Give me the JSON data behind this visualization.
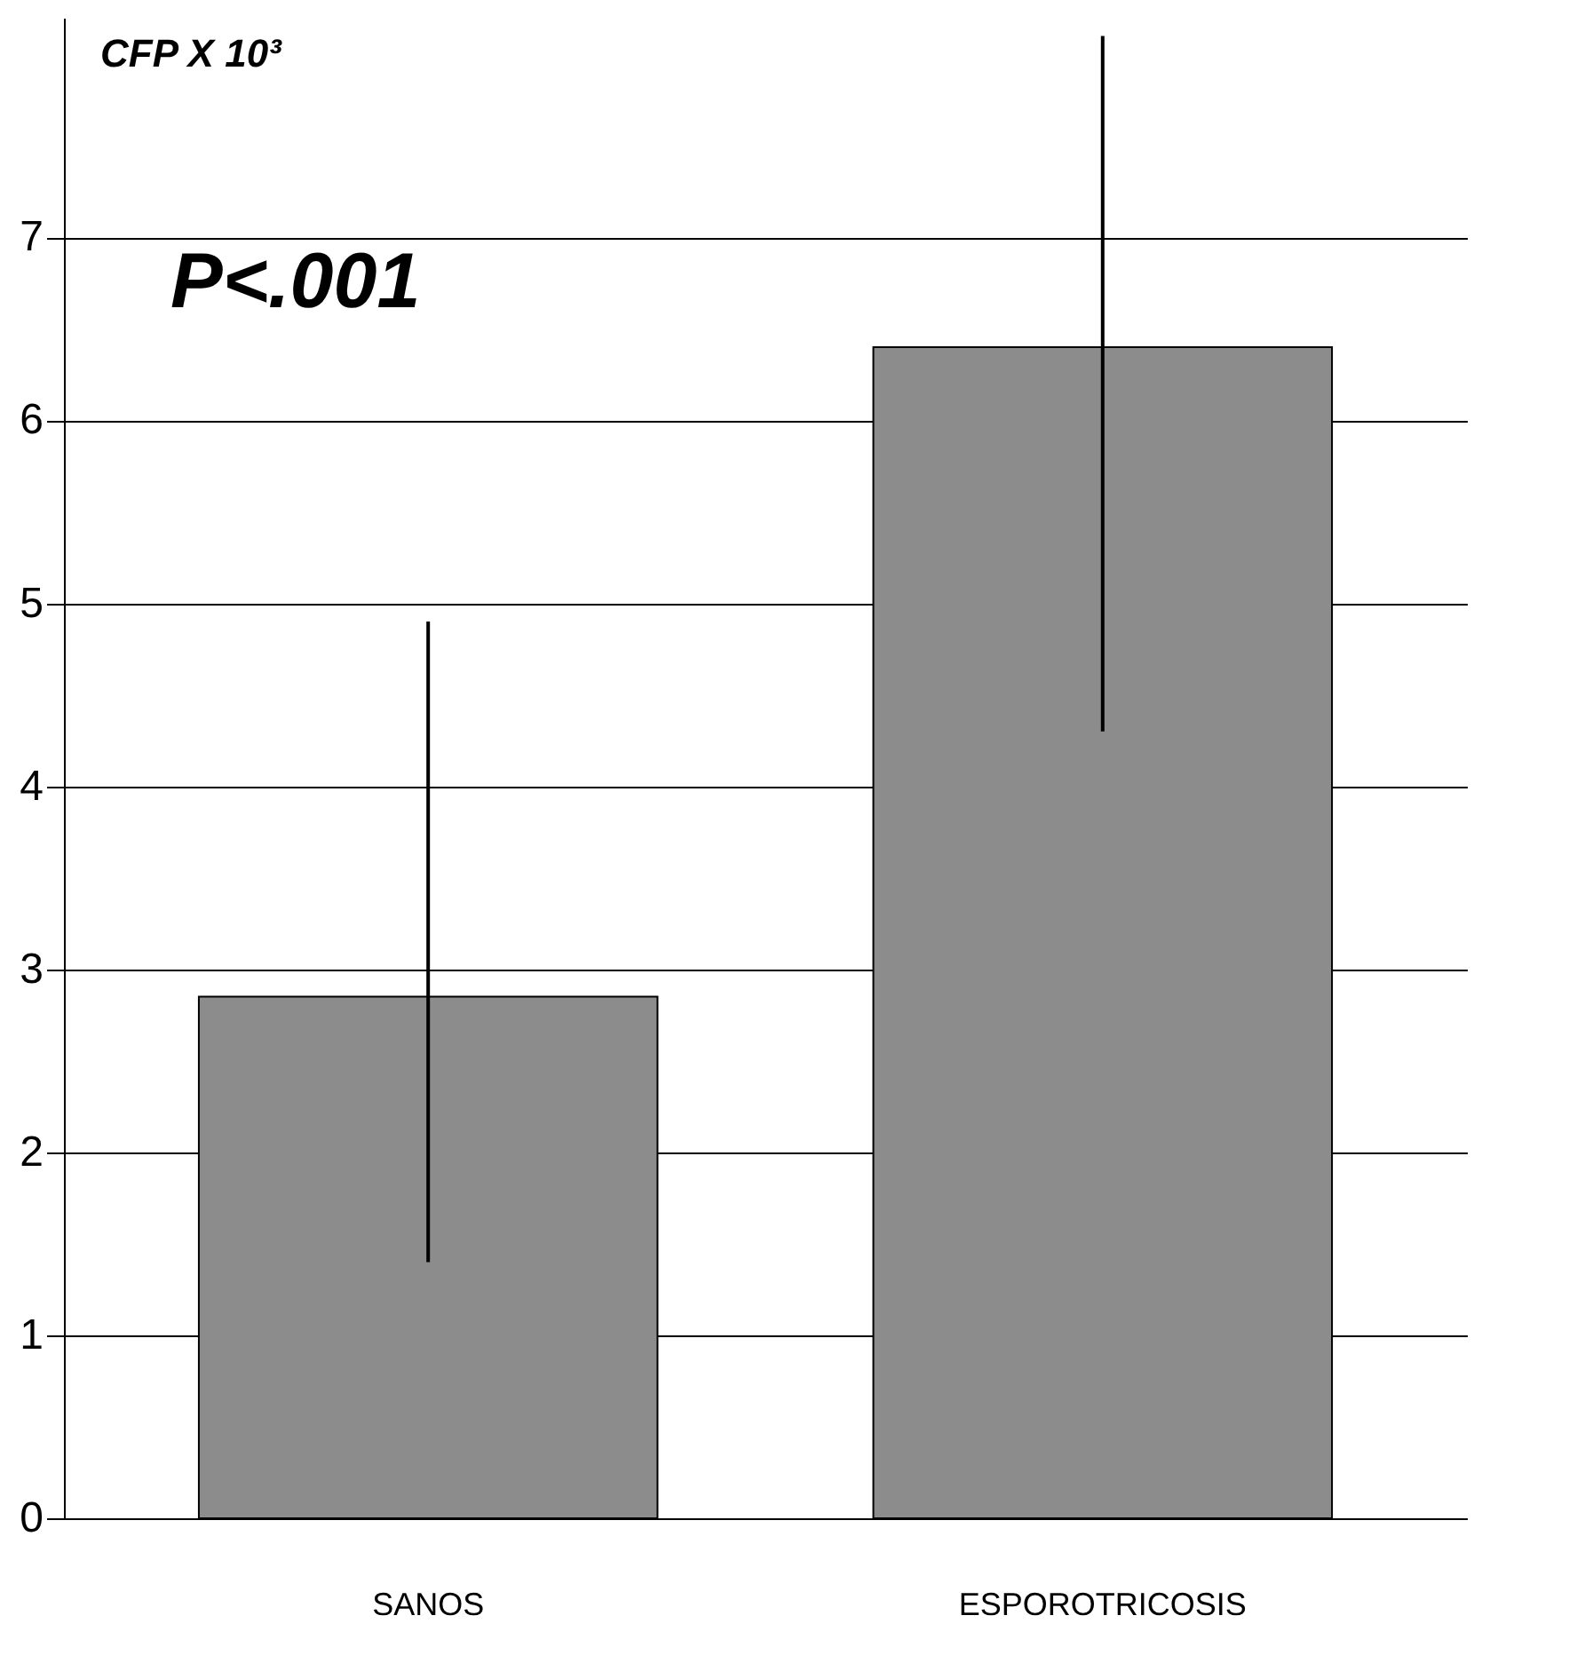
{
  "chart_data": {
    "type": "bar",
    "ylabel": "CFP X 10³",
    "categories": [
      "SANOS",
      "ESPOROTRICOSIS"
    ],
    "values": [
      2.85,
      6.4
    ],
    "errors": [
      [
        1.4,
        4.9
      ],
      [
        4.3,
        8.1
      ]
    ],
    "color": "#8c8c8c",
    "ylim": [
      0,
      8.2
    ],
    "yticks": [
      0,
      1,
      2,
      3,
      4,
      5,
      6,
      7
    ],
    "grid": "y",
    "annotations": [
      "P<.001"
    ]
  }
}
